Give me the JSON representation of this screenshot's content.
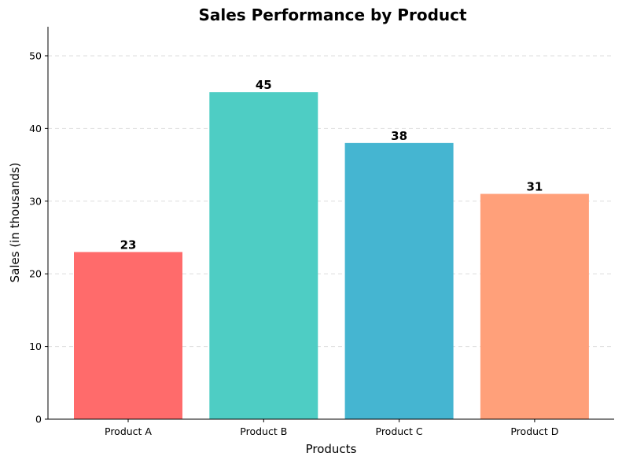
{
  "chart_data": {
    "type": "bar",
    "title": "Sales Performance by Product",
    "xlabel": "Products",
    "ylabel": "Sales (in thousands)",
    "categories": [
      "Product A",
      "Product B",
      "Product C",
      "Product D"
    ],
    "values": [
      23,
      45,
      38,
      31
    ],
    "data_labels": [
      "23",
      "45",
      "38",
      "31"
    ],
    "colors": [
      "#ff6b6b",
      "#4ecdc4",
      "#45b5d1",
      "#ffa07a"
    ],
    "ylim": [
      0,
      54
    ],
    "yticks": [
      0,
      10,
      20,
      30,
      40,
      50
    ],
    "ytick_labels": [
      "0",
      "10",
      "20",
      "30",
      "40",
      "50"
    ],
    "grid": "y-axis dashed",
    "legend": "none"
  }
}
